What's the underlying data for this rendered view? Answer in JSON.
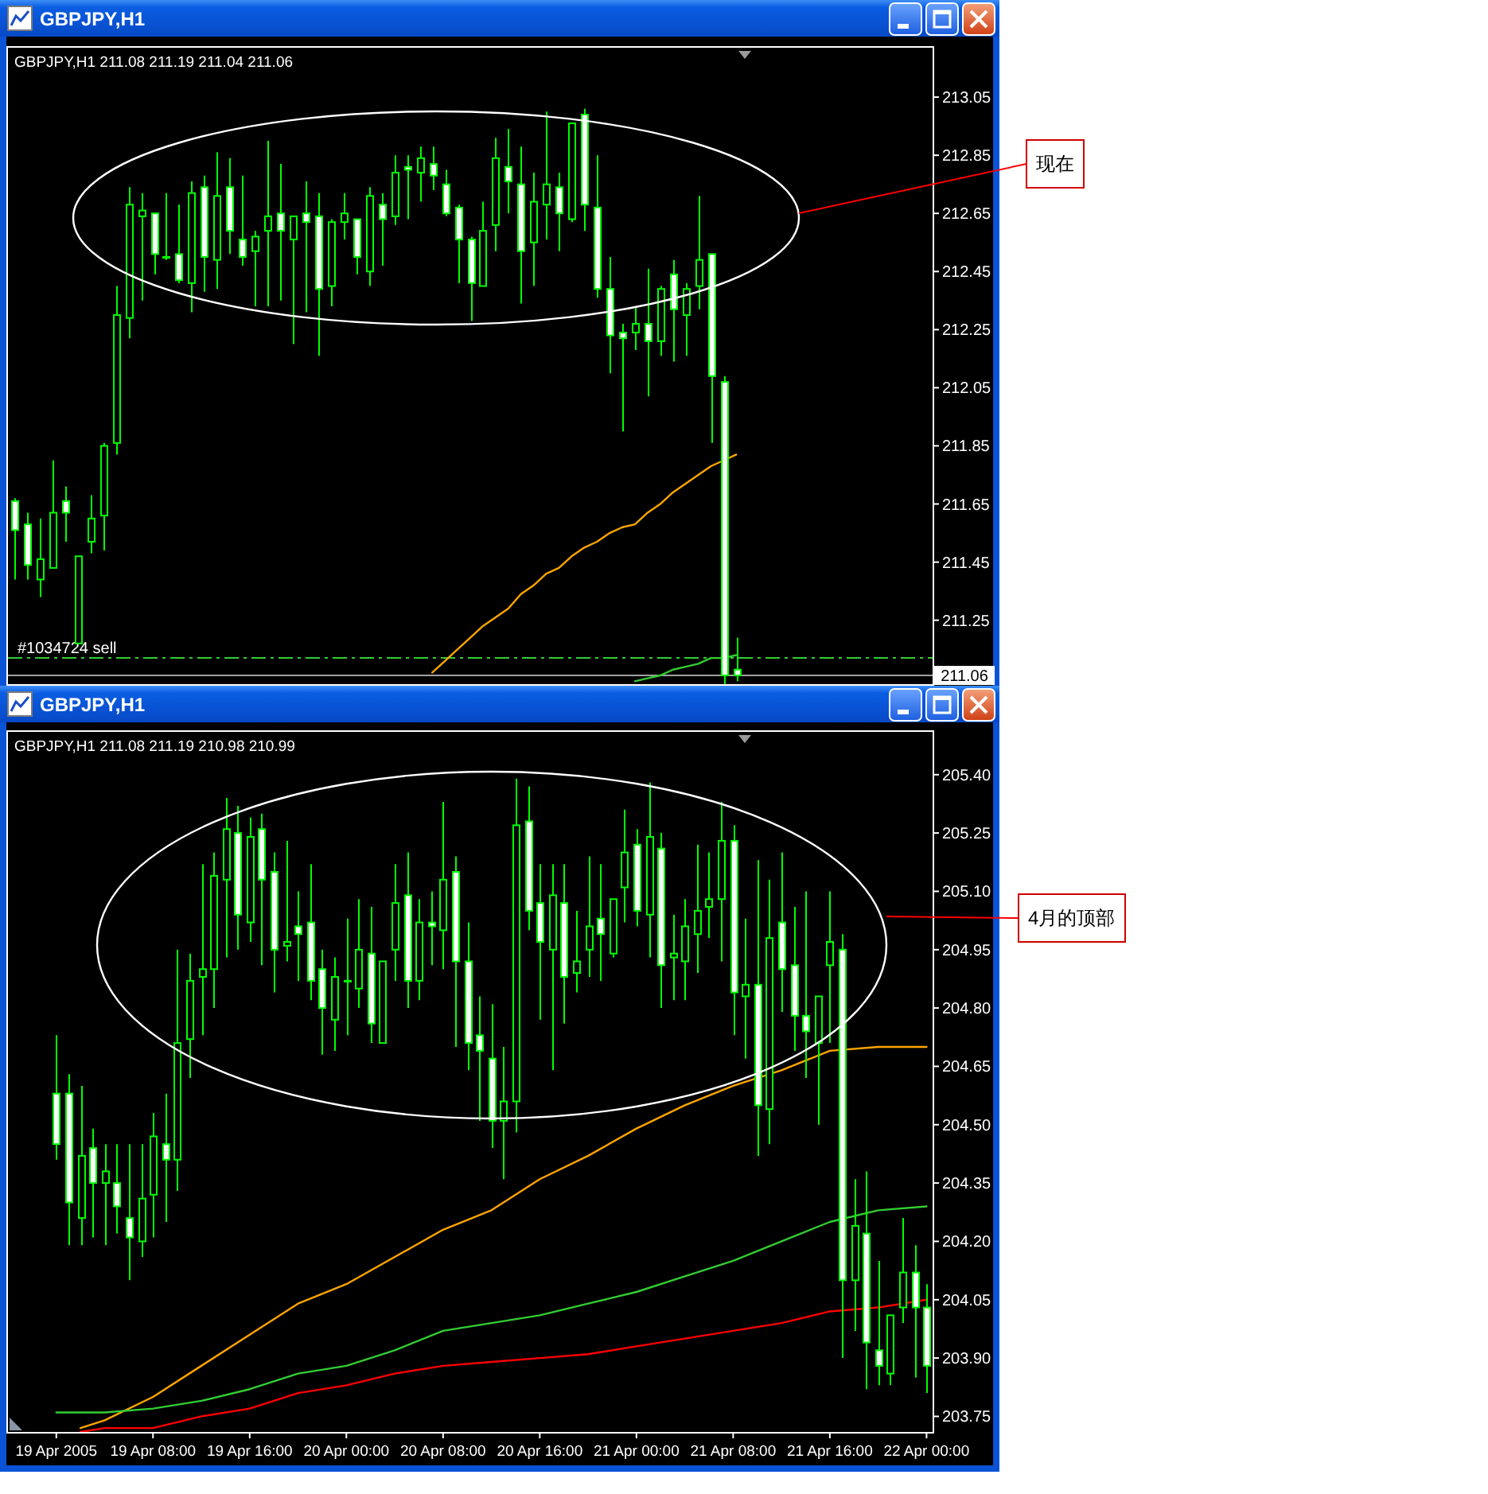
{
  "chart_data": [
    {
      "type": "candlestick",
      "title": "GBPJPY,H1",
      "subtitle": "GBPJPY,H1 211.08 211.19 211.04 211.06",
      "color": "#00ff00",
      "categories": [
        null,
        null,
        null,
        null,
        null,
        null,
        null,
        null,
        null,
        null,
        null,
        null,
        null,
        null,
        null,
        null,
        null,
        null,
        null,
        null,
        null,
        null,
        null,
        null,
        null,
        null,
        null,
        null,
        null,
        null,
        null,
        null,
        null,
        null,
        null,
        null,
        null,
        null,
        null,
        null,
        null,
        null,
        null,
        null,
        null,
        null,
        null,
        null,
        null,
        null,
        null,
        null,
        null,
        null,
        null,
        null,
        null,
        null,
        null,
        null,
        null,
        null,
        null,
        null,
        null,
        null,
        null,
        null,
        null,
        null,
        null,
        null,
        null
      ],
      "ohlc": [
        [
          211.66,
          211.67,
          211.39,
          211.56
        ],
        [
          211.58,
          211.62,
          211.39,
          211.44
        ],
        [
          211.39,
          211.6,
          211.33,
          211.46
        ],
        [
          211.43,
          211.8,
          211.43,
          211.62
        ],
        [
          211.66,
          211.71,
          211.52,
          211.62
        ],
        [
          211.17,
          211.47,
          211.17,
          211.47
        ],
        [
          211.52,
          211.68,
          211.48,
          211.6
        ],
        [
          211.61,
          211.86,
          211.49,
          211.85
        ],
        [
          211.86,
          212.4,
          211.82,
          212.3
        ],
        [
          212.29,
          212.74,
          212.22,
          212.68
        ],
        [
          212.64,
          212.72,
          212.35,
          212.66
        ],
        [
          212.65,
          212.65,
          212.44,
          212.51
        ],
        [
          212.5,
          212.72,
          212.49,
          212.5
        ],
        [
          212.51,
          212.68,
          212.41,
          212.42
        ],
        [
          212.41,
          212.76,
          212.31,
          212.72
        ],
        [
          212.74,
          212.78,
          212.38,
          212.5
        ],
        [
          212.49,
          212.86,
          212.39,
          212.71
        ],
        [
          212.74,
          212.84,
          212.51,
          212.59
        ],
        [
          212.56,
          212.78,
          212.47,
          212.5
        ],
        [
          212.52,
          212.59,
          212.33,
          212.57
        ],
        [
          212.59,
          212.9,
          212.33,
          212.64
        ],
        [
          212.65,
          212.82,
          212.35,
          212.59
        ],
        [
          212.56,
          212.64,
          212.2,
          212.64
        ],
        [
          212.65,
          212.76,
          212.31,
          212.62
        ],
        [
          212.64,
          212.72,
          212.16,
          212.39
        ],
        [
          212.4,
          212.63,
          212.33,
          212.62
        ],
        [
          212.62,
          212.72,
          212.56,
          212.65
        ],
        [
          212.63,
          212.63,
          212.44,
          212.5
        ],
        [
          212.45,
          212.74,
          212.4,
          212.71
        ],
        [
          212.68,
          212.72,
          212.47,
          212.63
        ],
        [
          212.64,
          212.85,
          212.61,
          212.79
        ],
        [
          212.81,
          212.85,
          212.63,
          212.8
        ],
        [
          212.79,
          212.88,
          212.69,
          212.84
        ],
        [
          212.82,
          212.88,
          212.73,
          212.78
        ],
        [
          212.75,
          212.8,
          212.64,
          212.65
        ],
        [
          212.67,
          212.68,
          212.41,
          212.56
        ],
        [
          212.56,
          212.57,
          212.28,
          212.41
        ],
        [
          212.4,
          212.69,
          212.4,
          212.59
        ],
        [
          212.61,
          212.91,
          212.52,
          212.84
        ],
        [
          212.81,
          212.94,
          212.65,
          212.76
        ],
        [
          212.75,
          212.88,
          212.34,
          212.52
        ],
        [
          212.55,
          212.79,
          212.4,
          212.69
        ],
        [
          212.68,
          213.0,
          212.56,
          212.75
        ],
        [
          212.74,
          212.79,
          212.52,
          212.65
        ],
        [
          212.63,
          212.96,
          212.62,
          212.96
        ],
        [
          212.99,
          213.01,
          212.59,
          212.68
        ],
        [
          212.67,
          212.85,
          212.36,
          212.39
        ],
        [
          212.39,
          212.5,
          212.1,
          212.23
        ],
        [
          212.24,
          212.27,
          211.9,
          212.22
        ],
        [
          212.24,
          212.33,
          212.18,
          212.27
        ],
        [
          212.27,
          212.46,
          212.02,
          212.21
        ],
        [
          212.21,
          212.4,
          212.16,
          212.39
        ],
        [
          212.44,
          212.49,
          212.14,
          212.32
        ],
        [
          212.3,
          212.41,
          212.16,
          212.39
        ],
        [
          212.4,
          212.71,
          212.32,
          212.49
        ],
        [
          212.51,
          212.51,
          211.86,
          212.09
        ],
        [
          212.07,
          212.09,
          211.03,
          211.06
        ],
        [
          211.08,
          211.19,
          211.04,
          211.06
        ],
        null,
        null,
        null,
        null,
        null,
        null,
        null,
        null,
        null,
        null,
        null,
        null,
        null,
        null,
        null
      ],
      "series": [
        {
          "type": "line",
          "color": "#ffa500",
          "values": [
            null,
            null,
            null,
            null,
            null,
            null,
            null,
            null,
            null,
            null,
            null,
            null,
            null,
            null,
            null,
            null,
            null,
            null,
            null,
            null,
            null,
            null,
            null,
            null,
            null,
            null,
            null,
            null,
            null,
            null,
            null,
            null,
            null,
            211.07,
            211.11,
            211.15,
            211.19,
            211.23,
            211.26,
            211.29,
            211.34,
            211.37,
            211.41,
            211.43,
            211.47,
            211.5,
            211.52,
            211.55,
            211.57,
            211.58,
            211.62,
            211.65,
            211.69,
            211.72,
            211.75,
            211.78,
            211.8,
            211.82,
            null,
            null,
            null,
            null,
            null,
            null,
            null,
            null,
            null,
            null,
            null,
            null,
            null,
            null,
            null
          ]
        },
        {
          "type": "line",
          "color": "#32cd32",
          "values": [
            null,
            null,
            null,
            null,
            null,
            null,
            null,
            null,
            null,
            null,
            null,
            null,
            null,
            null,
            null,
            null,
            null,
            null,
            null,
            null,
            null,
            null,
            null,
            null,
            null,
            null,
            null,
            null,
            null,
            null,
            null,
            null,
            null,
            null,
            null,
            null,
            null,
            null,
            null,
            null,
            null,
            null,
            null,
            null,
            null,
            null,
            null,
            null,
            null,
            211.04,
            211.05,
            211.06,
            211.08,
            211.09,
            211.1,
            211.12,
            211.12,
            211.13,
            null,
            null,
            null,
            null,
            null,
            null,
            null,
            null,
            null,
            null,
            null,
            null,
            null,
            null,
            null
          ]
        }
      ],
      "ylim": [
        211.03,
        213.22
      ],
      "yticks": [
        213.05,
        212.85,
        212.65,
        212.45,
        212.25,
        212.05,
        211.85,
        211.65,
        211.45,
        211.25
      ],
      "ref_lines": [
        {
          "axis": "y",
          "value": 211.12,
          "label": "#1034724 sell",
          "color": "#32cd32",
          "line_style": "dashed"
        },
        {
          "axis": "y",
          "value": 211.06,
          "color": "#a0a0a0"
        }
      ],
      "annotations": [
        "现在",
        {
          "text": "211.06",
          "y": 211.06
        }
      ]
    },
    {
      "type": "candlestick",
      "title": "GBPJPY,H1",
      "subtitle": "GBPJPY,H1 211.08 211.19 210.98 210.99",
      "color": "#00ff00",
      "x": [
        "2005-04-19T00:00",
        "2005-04-19T01:00",
        "2005-04-19T02:00",
        "2005-04-19T03:00",
        "2005-04-19T04:00",
        "2005-04-19T05:00",
        "2005-04-19T06:00",
        "2005-04-19T07:00",
        "2005-04-19T08:00",
        "2005-04-19T09:00",
        "2005-04-19T10:00",
        "2005-04-19T11:00",
        "2005-04-19T12:00",
        "2005-04-19T13:00",
        "2005-04-19T14:00",
        "2005-04-19T15:00",
        "2005-04-19T16:00",
        "2005-04-19T17:00",
        "2005-04-19T18:00",
        "2005-04-19T19:00",
        "2005-04-19T20:00",
        "2005-04-19T21:00",
        "2005-04-19T22:00",
        "2005-04-19T23:00",
        "2005-04-20T00:00",
        "2005-04-20T01:00",
        "2005-04-20T02:00",
        "2005-04-20T03:00",
        "2005-04-20T04:00",
        "2005-04-20T05:00",
        "2005-04-20T06:00",
        "2005-04-20T07:00",
        "2005-04-20T08:00",
        "2005-04-20T09:00",
        "2005-04-20T10:00",
        "2005-04-20T11:00",
        "2005-04-20T12:00",
        "2005-04-20T13:00",
        "2005-04-20T14:00",
        "2005-04-20T15:00",
        "2005-04-20T16:00",
        "2005-04-20T17:00",
        "2005-04-20T18:00",
        "2005-04-20T19:00",
        "2005-04-20T20:00",
        "2005-04-20T21:00",
        "2005-04-20T22:00",
        "2005-04-20T23:00",
        "2005-04-21T00:00",
        "2005-04-21T01:00",
        "2005-04-21T02:00",
        "2005-04-21T03:00",
        "2005-04-21T04:00",
        "2005-04-21T05:00",
        "2005-04-21T06:00",
        "2005-04-21T07:00",
        "2005-04-21T08:00",
        "2005-04-21T09:00",
        "2005-04-21T10:00",
        "2005-04-21T11:00",
        "2005-04-21T12:00",
        "2005-04-21T13:00",
        "2005-04-21T14:00",
        "2005-04-21T15:00",
        "2005-04-21T16:00",
        "2005-04-21T17:00",
        "2005-04-21T18:00",
        "2005-04-21T19:00",
        "2005-04-21T20:00",
        "2005-04-21T21:00",
        "2005-04-21T22:00",
        "2005-04-21T23:00",
        "2005-04-22T00:00"
      ],
      "ohlc": [
        [
          204.58,
          204.73,
          204.41,
          204.45
        ],
        [
          204.58,
          204.63,
          204.19,
          204.3
        ],
        [
          204.26,
          204.6,
          204.19,
          204.42
        ],
        [
          204.44,
          204.49,
          204.21,
          204.35
        ],
        [
          204.35,
          204.45,
          204.19,
          204.38
        ],
        [
          204.35,
          204.45,
          204.22,
          204.29
        ],
        [
          204.26,
          204.45,
          204.1,
          204.21
        ],
        [
          204.2,
          204.45,
          204.16,
          204.31
        ],
        [
          204.32,
          204.53,
          204.21,
          204.47
        ],
        [
          204.45,
          204.58,
          204.25,
          204.41
        ],
        [
          204.41,
          204.95,
          204.33,
          204.71
        ],
        [
          204.72,
          204.94,
          204.62,
          204.87
        ],
        [
          204.88,
          205.17,
          204.73,
          204.9
        ],
        [
          204.9,
          205.2,
          204.8,
          205.14
        ],
        [
          205.13,
          205.34,
          204.93,
          205.26
        ],
        [
          205.25,
          205.32,
          204.95,
          205.04
        ],
        [
          205.02,
          205.29,
          204.97,
          205.24
        ],
        [
          205.26,
          205.3,
          204.91,
          205.13
        ],
        [
          205.15,
          205.2,
          204.84,
          204.95
        ],
        [
          204.96,
          205.23,
          204.92,
          204.97
        ],
        [
          205.01,
          205.1,
          204.87,
          204.99
        ],
        [
          205.02,
          205.17,
          204.82,
          204.87
        ],
        [
          204.9,
          204.95,
          204.68,
          204.8
        ],
        [
          204.77,
          204.93,
          204.69,
          204.88
        ],
        [
          204.87,
          205.03,
          204.73,
          204.87
        ],
        [
          204.85,
          205.08,
          204.8,
          204.95
        ],
        [
          204.94,
          205.06,
          204.71,
          204.76
        ],
        [
          204.71,
          204.92,
          204.71,
          204.92
        ],
        [
          204.95,
          205.17,
          204.87,
          205.07
        ],
        [
          205.09,
          205.2,
          204.8,
          204.87
        ],
        [
          204.87,
          205.08,
          204.82,
          205.02
        ],
        [
          205.02,
          205.1,
          204.91,
          205.01
        ],
        [
          205.0,
          205.33,
          204.9,
          205.13
        ],
        [
          205.15,
          205.19,
          204.7,
          204.92
        ],
        [
          204.92,
          205.02,
          204.64,
          204.71
        ],
        [
          204.73,
          204.83,
          204.51,
          204.69
        ],
        [
          204.67,
          204.81,
          204.44,
          204.51
        ],
        [
          204.51,
          204.7,
          204.36,
          204.56
        ],
        [
          204.56,
          205.39,
          204.48,
          205.27
        ],
        [
          205.28,
          205.37,
          205.0,
          205.05
        ],
        [
          205.07,
          205.17,
          204.77,
          204.97
        ],
        [
          204.95,
          205.17,
          204.64,
          205.09
        ],
        [
          205.07,
          205.17,
          204.76,
          204.88
        ],
        [
          204.89,
          205.05,
          204.84,
          204.92
        ],
        [
          204.95,
          205.19,
          204.88,
          205.01
        ],
        [
          205.03,
          205.17,
          204.87,
          204.99
        ],
        [
          204.94,
          205.08,
          204.93,
          205.08
        ],
        [
          205.11,
          205.31,
          205.02,
          205.2
        ],
        [
          205.22,
          205.26,
          205.01,
          205.05
        ],
        [
          205.04,
          205.38,
          204.93,
          205.24
        ],
        [
          205.21,
          205.25,
          204.8,
          204.91
        ],
        [
          204.93,
          205.04,
          204.82,
          204.94
        ],
        [
          204.92,
          205.08,
          204.82,
          205.01
        ],
        [
          204.99,
          205.22,
          204.89,
          205.05
        ],
        [
          205.06,
          205.2,
          204.98,
          205.08
        ],
        [
          205.08,
          205.33,
          204.92,
          205.23
        ],
        [
          205.23,
          205.27,
          204.73,
          204.84
        ],
        [
          204.83,
          205.03,
          204.67,
          204.86
        ],
        [
          204.86,
          205.18,
          204.42,
          204.55
        ],
        [
          204.54,
          205.13,
          204.45,
          204.98
        ],
        [
          205.02,
          205.2,
          204.79,
          204.9
        ],
        [
          204.91,
          205.06,
          204.69,
          204.78
        ],
        [
          204.78,
          205.1,
          204.62,
          204.74
        ],
        [
          204.71,
          204.83,
          204.5,
          204.83
        ],
        [
          204.91,
          205.1,
          204.71,
          204.97
        ],
        [
          204.95,
          204.99,
          203.9,
          204.1
        ],
        [
          204.1,
          204.36,
          203.97,
          204.24
        ],
        [
          204.22,
          204.38,
          203.82,
          203.94
        ],
        [
          203.92,
          204.15,
          203.83,
          203.88
        ],
        [
          203.86,
          204.01,
          203.83,
          204.01
        ],
        [
          204.03,
          204.26,
          203.99,
          204.12
        ],
        [
          204.12,
          204.19,
          203.85,
          204.03
        ],
        [
          204.03,
          204.09,
          203.81,
          203.88
        ]
      ],
      "series": [
        {
          "type": "line",
          "color": "#ffa500",
          "x": [
            "2005-04-19T02:00",
            "2005-04-19T04:00",
            "2005-04-19T08:00",
            "2005-04-19T12:00",
            "2005-04-19T16:00",
            "2005-04-19T20:00",
            "2005-04-20T00:00",
            "2005-04-20T04:00",
            "2005-04-20T08:00",
            "2005-04-20T12:00",
            "2005-04-20T16:00",
            "2005-04-20T20:00",
            "2005-04-21T00:00",
            "2005-04-21T04:00",
            "2005-04-21T08:00",
            "2005-04-21T12:00",
            "2005-04-21T16:00",
            "2005-04-21T20:00",
            "2005-04-22T00:00"
          ],
          "values": [
            203.72,
            203.74,
            203.8,
            203.88,
            203.96,
            204.04,
            204.09,
            204.16,
            204.23,
            204.28,
            204.36,
            204.42,
            204.49,
            204.55,
            204.6,
            204.64,
            204.69,
            204.7,
            204.7
          ]
        },
        {
          "type": "line",
          "color": "#32cd32",
          "x": [
            "2005-04-19T00:00",
            "2005-04-19T04:00",
            "2005-04-19T08:00",
            "2005-04-19T12:00",
            "2005-04-19T16:00",
            "2005-04-19T20:00",
            "2005-04-20T00:00",
            "2005-04-20T04:00",
            "2005-04-20T08:00",
            "2005-04-20T12:00",
            "2005-04-20T16:00",
            "2005-04-20T20:00",
            "2005-04-21T00:00",
            "2005-04-21T04:00",
            "2005-04-21T08:00",
            "2005-04-21T12:00",
            "2005-04-21T16:00",
            "2005-04-21T20:00",
            "2005-04-22T00:00"
          ],
          "values": [
            203.76,
            203.76,
            203.77,
            203.79,
            203.82,
            203.86,
            203.88,
            203.92,
            203.97,
            203.99,
            204.01,
            204.04,
            204.07,
            204.11,
            204.15,
            204.2,
            204.25,
            204.28,
            204.29
          ]
        },
        {
          "type": "line",
          "color": "#ff0000",
          "x": [
            "2005-04-19T02:00",
            "2005-04-19T04:00",
            "2005-04-19T08:00",
            "2005-04-19T12:00",
            "2005-04-19T16:00",
            "2005-04-19T20:00",
            "2005-04-20T00:00",
            "2005-04-20T04:00",
            "2005-04-20T08:00",
            "2005-04-20T12:00",
            "2005-04-20T16:00",
            "2005-04-20T20:00",
            "2005-04-21T00:00",
            "2005-04-21T04:00",
            "2005-04-21T08:00",
            "2005-04-21T12:00",
            "2005-04-21T16:00",
            "2005-04-21T20:00",
            "2005-04-22T00:00"
          ],
          "values": [
            203.71,
            203.72,
            203.72,
            203.75,
            203.77,
            203.81,
            203.83,
            203.86,
            203.88,
            203.89,
            203.9,
            203.91,
            203.93,
            203.95,
            203.97,
            203.99,
            204.02,
            204.03,
            204.05
          ]
        }
      ],
      "xlim": [
        "2005-04-18T20:00",
        "2005-04-22T00:30"
      ],
      "xticks": [
        {
          "value": "2005-04-19T00:00",
          "label": "19 Apr 2005"
        },
        {
          "value": "2005-04-19T08:00",
          "label": "19 Apr 08:00"
        },
        {
          "value": "2005-04-19T16:00",
          "label": "19 Apr 16:00"
        },
        {
          "value": "2005-04-20T00:00",
          "label": "20 Apr 00:00"
        },
        {
          "value": "2005-04-20T08:00",
          "label": "20 Apr 08:00"
        },
        {
          "value": "2005-04-20T16:00",
          "label": "20 Apr 16:00"
        },
        {
          "value": "2005-04-21T00:00",
          "label": "21 Apr 00:00"
        },
        {
          "value": "2005-04-21T08:00",
          "label": "21 Apr 08:00"
        },
        {
          "value": "2005-04-21T16:00",
          "label": "21 Apr 16:00"
        },
        {
          "value": "2005-04-22T00:00",
          "label": "22 Apr 00:00"
        }
      ],
      "ylim": [
        203.71,
        205.51
      ],
      "yticks": [
        {
          "value": 205.4,
          "label": "205.40"
        },
        205.25,
        {
          "value": 205.1,
          "label": "205.10"
        },
        204.95,
        {
          "value": 204.8,
          "label": "204.80"
        },
        204.65,
        {
          "value": 204.5,
          "label": "204.50"
        },
        204.35,
        {
          "value": 204.2,
          "label": "204.20"
        },
        204.05,
        {
          "value": 203.9,
          "label": "203.90"
        },
        203.75
      ],
      "annotations": [
        "4月的顶部"
      ]
    }
  ]
}
